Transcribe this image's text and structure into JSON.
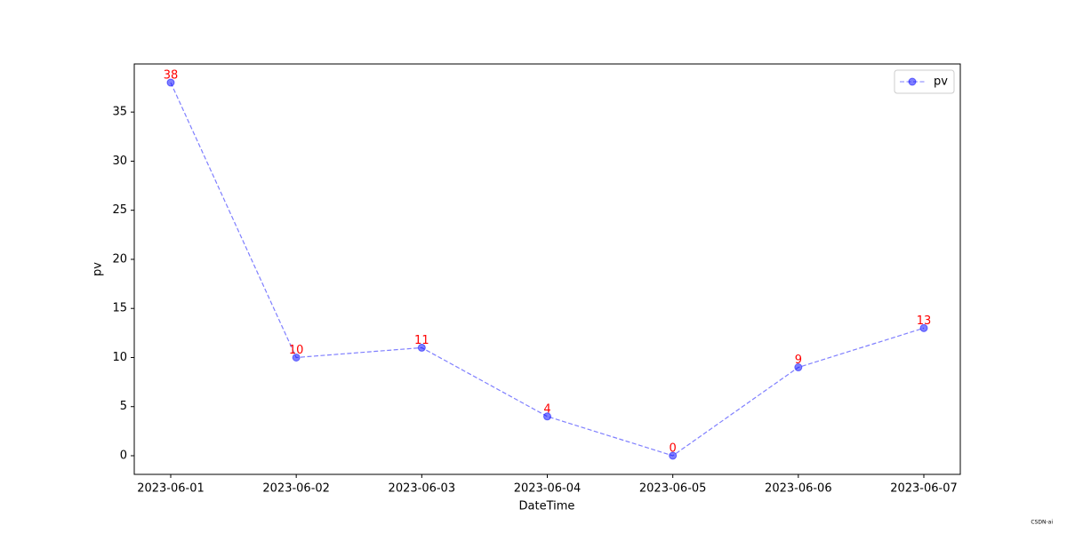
{
  "chart_data": {
    "type": "line",
    "x_label": "DateTime",
    "y_label": "pv",
    "categories": [
      "2023-06-01",
      "2023-06-02",
      "2023-06-03",
      "2023-06-04",
      "2023-06-05",
      "2023-06-06",
      "2023-06-07"
    ],
    "series": [
      {
        "name": "pv",
        "color": "blue",
        "values": [
          38,
          10,
          11,
          4,
          0,
          9,
          13
        ]
      }
    ],
    "value_label_color": "red",
    "ylim": [
      -1.9,
      39.9
    ],
    "yticks": [
      0,
      5,
      10,
      15,
      20,
      25,
      30,
      35
    ],
    "grid": false,
    "legend": "upper right"
  },
  "watermark": "CSDN-ai"
}
